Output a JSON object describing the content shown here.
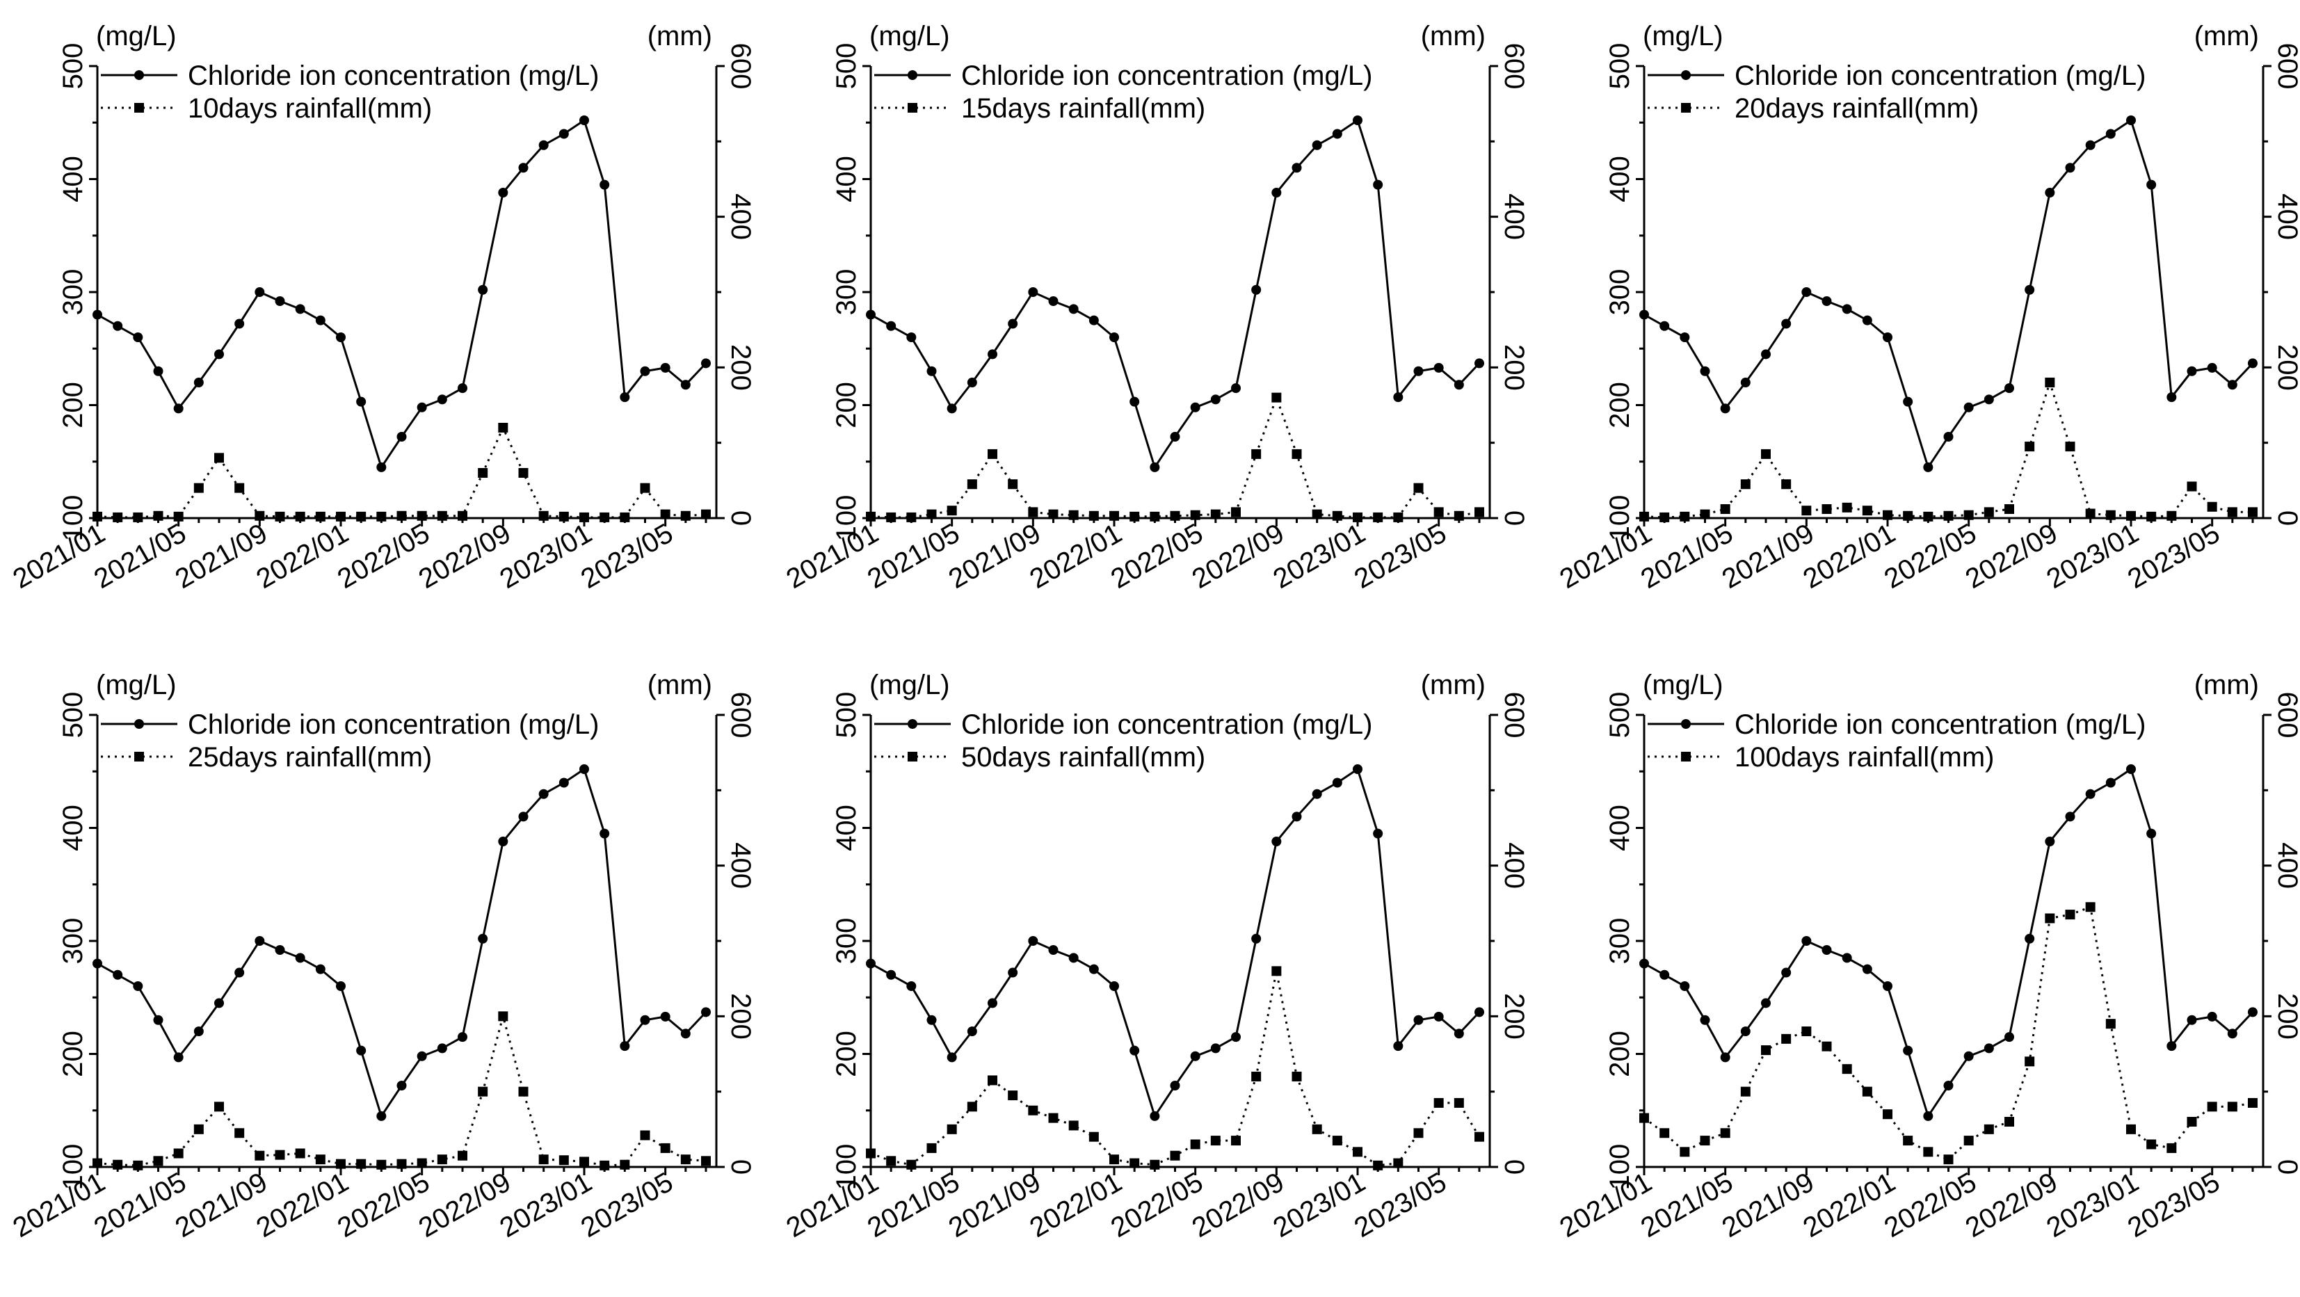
{
  "chart_data": [
    {
      "type": "line",
      "title": "",
      "xlabel": "",
      "y_left_unit": "(mg/L)",
      "y_right_unit": "(mm)",
      "ylim_left": [
        100,
        500
      ],
      "ylim_right": [
        0,
        600
      ],
      "left_ticks": [
        "100",
        "200",
        "300",
        "400",
        "500"
      ],
      "right_ticks": [
        "0",
        "200",
        "400",
        "600"
      ],
      "x_tick_labels": [
        "2021/01",
        "2021/05",
        "2021/09",
        "2022/01",
        "2022/05",
        "2022/09",
        "2023/01",
        "2023/05"
      ],
      "x_tick_indices": [
        0,
        4,
        8,
        12,
        16,
        20,
        24,
        28
      ],
      "legend_location": "top-left",
      "series": [
        {
          "name": "Chloride ion concentration (mg/L)",
          "axis": "left",
          "style": "solid",
          "marker": "circle",
          "values": [
            280,
            270,
            260,
            230,
            197,
            220,
            245,
            272,
            300,
            292,
            285,
            275,
            260,
            203,
            145,
            172,
            198,
            205,
            215,
            302,
            388,
            410,
            430,
            440,
            452,
            395,
            207,
            230,
            233,
            218,
            237
          ]
        },
        {
          "name": "10days rainfall(mm)",
          "axis": "right",
          "style": "dotted",
          "marker": "square",
          "values": [
            2,
            1,
            1,
            3,
            2,
            40,
            80,
            40,
            3,
            2,
            2,
            2,
            2,
            2,
            2,
            3,
            3,
            3,
            3,
            60,
            120,
            60,
            3,
            2,
            1,
            1,
            1,
            40,
            5,
            3,
            5
          ]
        }
      ]
    },
    {
      "type": "line",
      "title": "",
      "xlabel": "",
      "y_left_unit": "(mg/L)",
      "y_right_unit": "(mm)",
      "ylim_left": [
        100,
        500
      ],
      "ylim_right": [
        0,
        600
      ],
      "left_ticks": [
        "100",
        "200",
        "300",
        "400",
        "500"
      ],
      "right_ticks": [
        "0",
        "200",
        "400",
        "600"
      ],
      "x_tick_labels": [
        "2021/01",
        "2021/05",
        "2021/09",
        "2022/01",
        "2022/05",
        "2022/09",
        "2023/01",
        "2023/05"
      ],
      "x_tick_indices": [
        0,
        4,
        8,
        12,
        16,
        20,
        24,
        28
      ],
      "legend_location": "top-left",
      "series": [
        {
          "name": "Chloride ion concentration (mg/L)",
          "axis": "left",
          "style": "solid",
          "marker": "circle",
          "values": [
            280,
            270,
            260,
            230,
            197,
            220,
            245,
            272,
            300,
            292,
            285,
            275,
            260,
            203,
            145,
            172,
            198,
            205,
            215,
            302,
            388,
            410,
            430,
            440,
            452,
            395,
            207,
            230,
            233,
            218,
            237
          ]
        },
        {
          "name": "15days rainfall(mm)",
          "axis": "right",
          "style": "dotted",
          "marker": "square",
          "values": [
            2,
            1,
            1,
            5,
            10,
            45,
            85,
            45,
            8,
            5,
            4,
            3,
            3,
            2,
            2,
            3,
            4,
            5,
            8,
            85,
            160,
            85,
            5,
            3,
            1,
            1,
            1,
            40,
            8,
            3,
            8
          ]
        }
      ]
    },
    {
      "type": "line",
      "title": "",
      "xlabel": "",
      "y_left_unit": "(mg/L)",
      "y_right_unit": "(mm)",
      "ylim_left": [
        100,
        500
      ],
      "ylim_right": [
        0,
        600
      ],
      "left_ticks": [
        "100",
        "200",
        "300",
        "400",
        "500"
      ],
      "right_ticks": [
        "0",
        "200",
        "400",
        "600"
      ],
      "x_tick_labels": [
        "2021/01",
        "2021/05",
        "2021/09",
        "2022/01",
        "2022/05",
        "2022/09",
        "2023/01",
        "2023/05"
      ],
      "x_tick_indices": [
        0,
        4,
        8,
        12,
        16,
        20,
        24,
        28
      ],
      "legend_location": "top-left",
      "series": [
        {
          "name": "Chloride ion concentration (mg/L)",
          "axis": "left",
          "style": "solid",
          "marker": "circle",
          "values": [
            280,
            270,
            260,
            230,
            197,
            220,
            245,
            272,
            300,
            292,
            285,
            275,
            260,
            203,
            145,
            172,
            198,
            205,
            215,
            302,
            388,
            410,
            430,
            440,
            452,
            395,
            207,
            230,
            233,
            218,
            237
          ]
        },
        {
          "name": "20days rainfall(mm)",
          "axis": "right",
          "style": "dotted",
          "marker": "square",
          "values": [
            2,
            1,
            2,
            5,
            12,
            45,
            85,
            45,
            10,
            12,
            14,
            10,
            4,
            3,
            2,
            3,
            4,
            8,
            12,
            95,
            180,
            95,
            6,
            4,
            3,
            2,
            3,
            42,
            15,
            8,
            8
          ]
        }
      ]
    },
    {
      "type": "line",
      "title": "",
      "xlabel": "",
      "y_left_unit": "(mg/L)",
      "y_right_unit": "(mm)",
      "ylim_left": [
        100,
        500
      ],
      "ylim_right": [
        0,
        600
      ],
      "left_ticks": [
        "100",
        "200",
        "300",
        "400",
        "500"
      ],
      "right_ticks": [
        "0",
        "200",
        "400",
        "600"
      ],
      "x_tick_labels": [
        "2021/01",
        "2021/05",
        "2021/09",
        "2022/01",
        "2022/05",
        "2022/09",
        "2023/01",
        "2023/05"
      ],
      "x_tick_indices": [
        0,
        4,
        8,
        12,
        16,
        20,
        24,
        28
      ],
      "legend_location": "top-left",
      "series": [
        {
          "name": "Chloride ion concentration (mg/L)",
          "axis": "left",
          "style": "solid",
          "marker": "circle",
          "values": [
            280,
            270,
            260,
            230,
            197,
            220,
            245,
            272,
            300,
            292,
            285,
            275,
            260,
            203,
            145,
            172,
            198,
            205,
            215,
            302,
            388,
            410,
            430,
            440,
            452,
            395,
            207,
            230,
            233,
            218,
            237
          ]
        },
        {
          "name": "25days rainfall(mm)",
          "axis": "right",
          "style": "dotted",
          "marker": "square",
          "values": [
            5,
            3,
            2,
            8,
            18,
            50,
            80,
            45,
            15,
            16,
            18,
            10,
            4,
            4,
            3,
            4,
            5,
            10,
            15,
            100,
            200,
            100,
            10,
            9,
            7,
            2,
            3,
            42,
            25,
            10,
            8
          ]
        }
      ]
    },
    {
      "type": "line",
      "title": "",
      "xlabel": "",
      "y_left_unit": "(mg/L)",
      "y_right_unit": "(mm)",
      "ylim_left": [
        100,
        500
      ],
      "ylim_right": [
        0,
        600
      ],
      "left_ticks": [
        "100",
        "200",
        "300",
        "400",
        "500"
      ],
      "right_ticks": [
        "0",
        "200",
        "400",
        "600"
      ],
      "x_tick_labels": [
        "2021/01",
        "2021/05",
        "2021/09",
        "2022/01",
        "2022/05",
        "2022/09",
        "2023/01",
        "2023/05"
      ],
      "x_tick_indices": [
        0,
        4,
        8,
        12,
        16,
        20,
        24,
        28
      ],
      "legend_location": "top-left",
      "series": [
        {
          "name": "Chloride ion concentration (mg/L)",
          "axis": "left",
          "style": "solid",
          "marker": "circle",
          "values": [
            280,
            270,
            260,
            230,
            197,
            220,
            245,
            272,
            300,
            292,
            285,
            275,
            260,
            203,
            145,
            172,
            198,
            205,
            215,
            302,
            388,
            410,
            430,
            440,
            452,
            395,
            207,
            230,
            233,
            218,
            237
          ]
        },
        {
          "name": "50days rainfall(mm)",
          "axis": "right",
          "style": "dotted",
          "marker": "square",
          "values": [
            18,
            8,
            3,
            25,
            50,
            80,
            115,
            95,
            75,
            65,
            55,
            40,
            10,
            5,
            3,
            15,
            30,
            35,
            35,
            120,
            260,
            120,
            50,
            35,
            20,
            2,
            5,
            45,
            85,
            85,
            40
          ]
        }
      ]
    },
    {
      "type": "line",
      "title": "",
      "xlabel": "",
      "y_left_unit": "(mg/L)",
      "y_right_unit": "(mm)",
      "ylim_left": [
        100,
        500
      ],
      "ylim_right": [
        0,
        600
      ],
      "left_ticks": [
        "100",
        "200",
        "300",
        "400",
        "500"
      ],
      "right_ticks": [
        "0",
        "200",
        "400",
        "600"
      ],
      "x_tick_labels": [
        "2021/01",
        "2021/05",
        "2021/09",
        "2022/01",
        "2022/05",
        "2022/09",
        "2023/01",
        "2023/05"
      ],
      "x_tick_indices": [
        0,
        4,
        8,
        12,
        16,
        20,
        24,
        28
      ],
      "legend_location": "top-left",
      "series": [
        {
          "name": "Chloride ion concentration (mg/L)",
          "axis": "left",
          "style": "solid",
          "marker": "circle",
          "values": [
            280,
            270,
            260,
            230,
            197,
            220,
            245,
            272,
            300,
            292,
            285,
            275,
            260,
            203,
            145,
            172,
            198,
            205,
            215,
            302,
            388,
            410,
            430,
            440,
            452,
            395,
            207,
            230,
            233,
            218,
            237
          ]
        },
        {
          "name": "100days rainfall(mm)",
          "axis": "right",
          "style": "dotted",
          "marker": "square",
          "values": [
            65,
            45,
            20,
            35,
            45,
            100,
            155,
            170,
            180,
            160,
            130,
            100,
            70,
            35,
            20,
            10,
            35,
            50,
            60,
            140,
            330,
            335,
            345,
            190,
            50,
            30,
            25,
            60,
            80,
            80,
            85
          ]
        }
      ]
    }
  ]
}
